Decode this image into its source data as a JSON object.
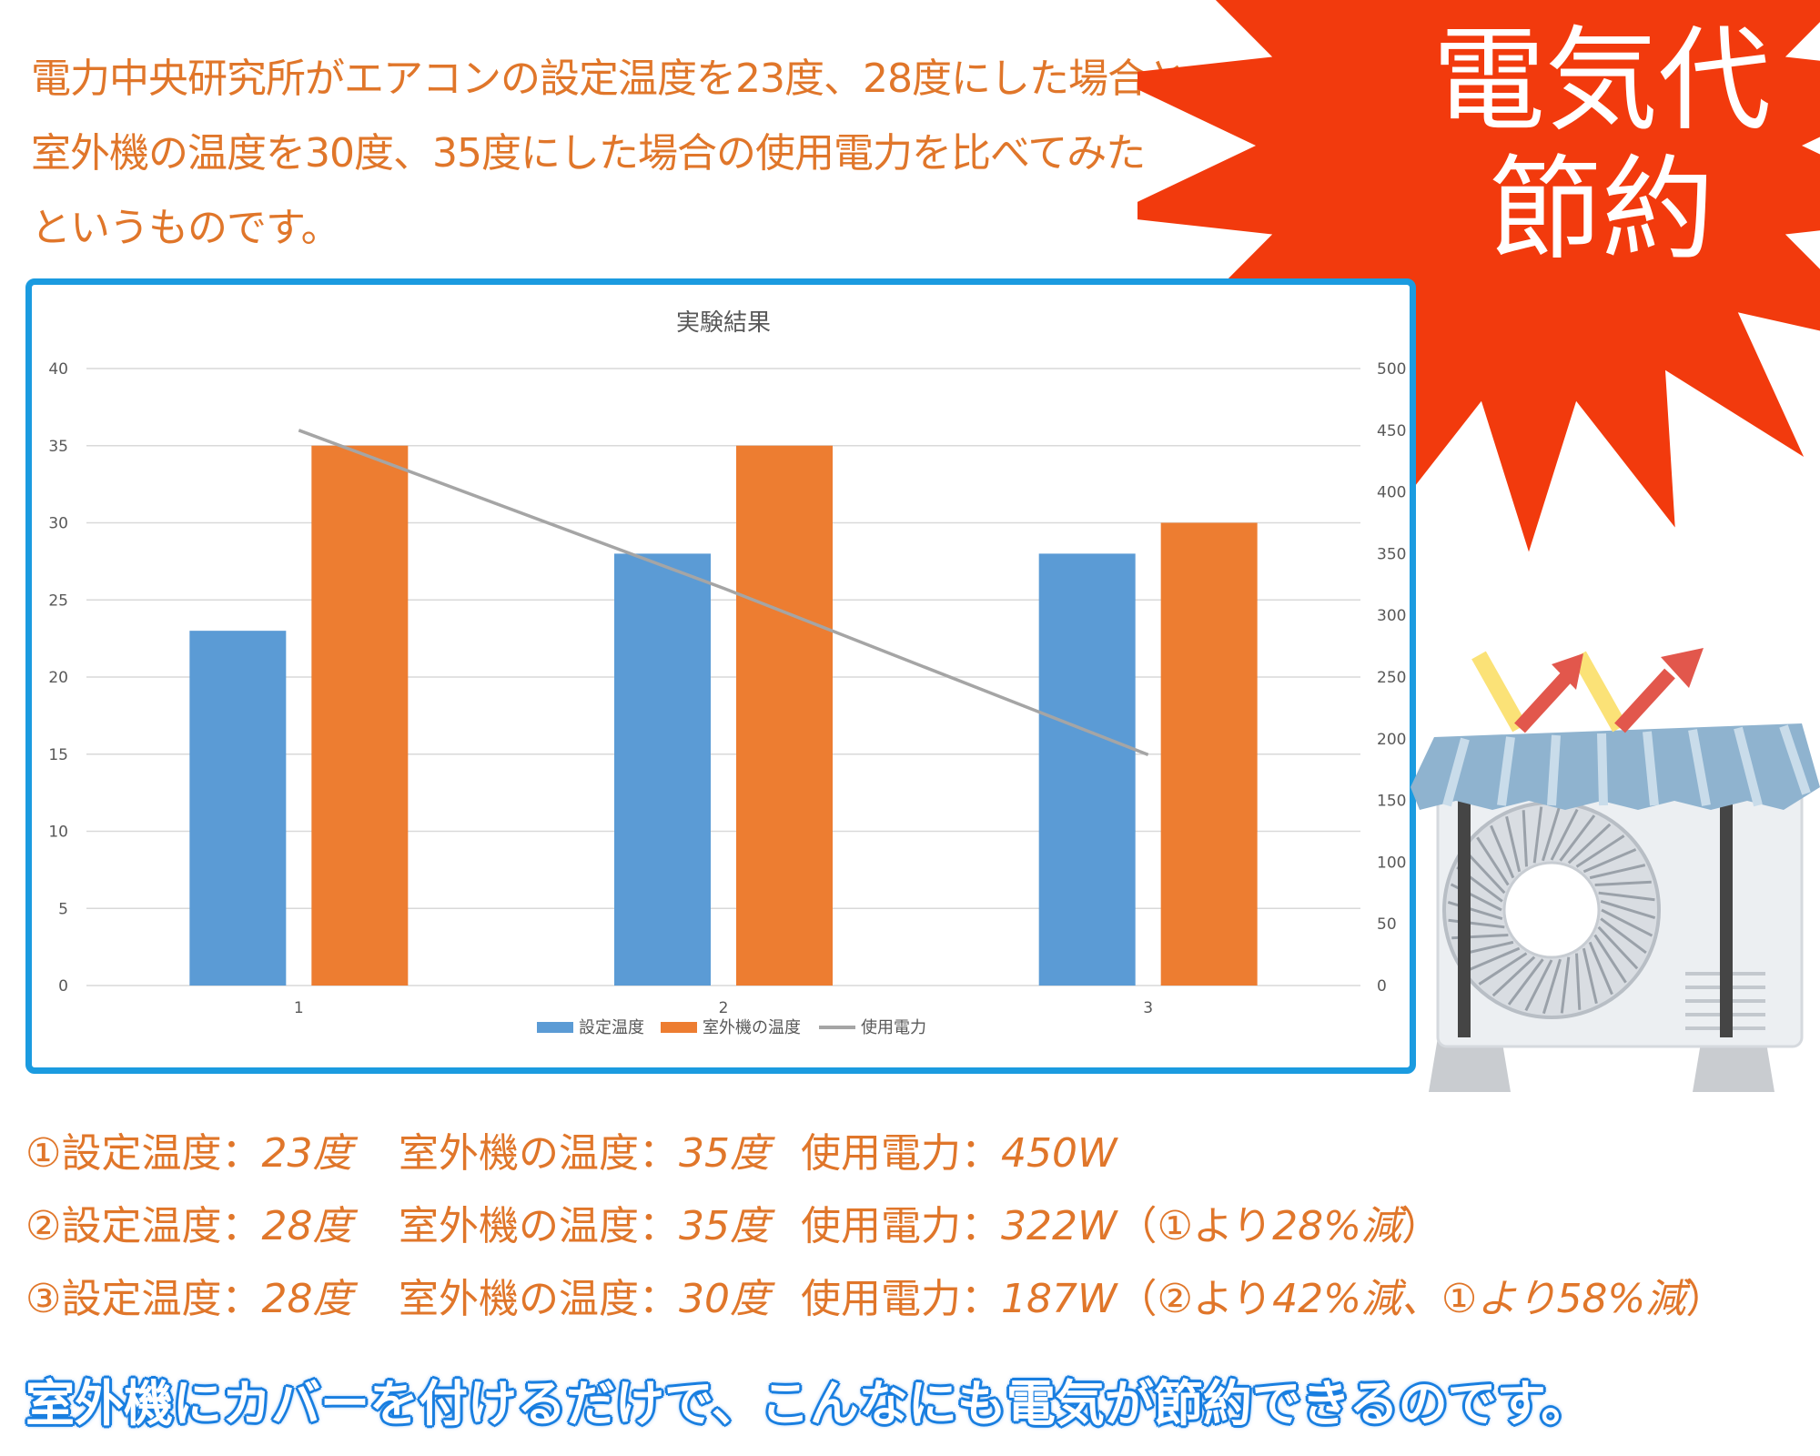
{
  "intro": {
    "line1": "電力中央研究所がエアコンの設定温度を23度、28度にした場合と、",
    "line2": "室外機の温度を30度、35度にした場合の使用電力を比べてみた",
    "line3": "というものです。"
  },
  "badge": {
    "line1": "電気代",
    "line2": "節約"
  },
  "colors": {
    "accent": "#e0762a",
    "burst": "#f23a0d",
    "frame": "#1b9be0",
    "bar_blue": "#5b9bd5",
    "bar_orange": "#ed7d31",
    "line_gray": "#a5a5a5",
    "tagline": "#1a7fe0"
  },
  "chart_data": {
    "type": "bar",
    "title": "実験結果",
    "categories": [
      "1",
      "2",
      "3"
    ],
    "series": [
      {
        "name": "設定温度",
        "type": "bar",
        "axis": "left",
        "values": [
          23,
          28,
          28
        ]
      },
      {
        "name": "室外機の温度",
        "type": "bar",
        "axis": "left",
        "values": [
          35,
          35,
          30
        ]
      },
      {
        "name": "使用電力",
        "type": "line",
        "axis": "right",
        "values": [
          450,
          322,
          187
        ]
      }
    ],
    "ylim": [
      0,
      40
    ],
    "yticks": [
      "0",
      "5",
      "10",
      "15",
      "20",
      "25",
      "30",
      "35",
      "40"
    ],
    "y2lim": [
      0,
      500
    ],
    "y2ticks": [
      "0",
      "50",
      "100",
      "150",
      "200",
      "250",
      "300",
      "350",
      "400",
      "450",
      "500"
    ],
    "grid": true,
    "legend": "bottom"
  },
  "results": [
    {
      "num": "①",
      "set_label": "設定温度：",
      "set_value": "23度",
      "out_label": "室外機の温度：",
      "out_value": "35度",
      "power_label": "使用電力：",
      "power_value": "450W",
      "note_open": "",
      "note_value": "",
      "note_close": ""
    },
    {
      "num": "②",
      "set_label": "設定温度：",
      "set_value": "28度",
      "out_label": "室外機の温度：",
      "out_value": "35度",
      "power_label": "使用電力：",
      "power_value": "322W",
      "note_open": "（①より",
      "note_value": "28%減",
      "note_close": "）"
    },
    {
      "num": "③",
      "set_label": "設定温度：",
      "set_value": "28度",
      "out_label": "室外機の温度：",
      "out_value": "30度",
      "power_label": "使用電力：",
      "power_value": "187W",
      "note_open": "（②より",
      "note_value": "42%減、①より58%減",
      "note_close": "）"
    }
  ],
  "tagline": "室外機にカバーを付けるだけで、こんなにも電気が節約できるのです。"
}
